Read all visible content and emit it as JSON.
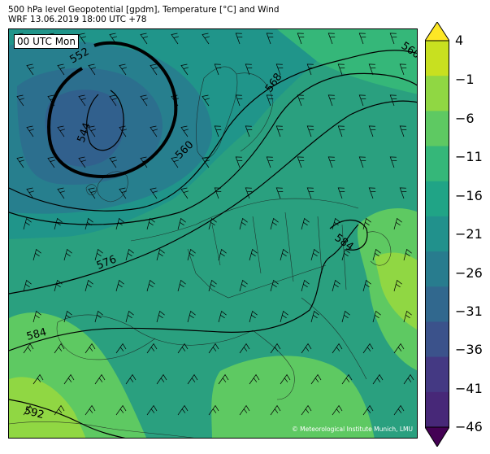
{
  "header": {
    "line1": "500 hPa level Geopotential [gpdm], Temperature [°C] and Wind",
    "line2": "WRF 13.06.2019 18:00 UTC +78"
  },
  "map": {
    "run_label": "00 UTC Mon",
    "copyright": "© Meteorological Institute Munich, LMU",
    "contour_labels": [
      "552",
      "544",
      "560",
      "568",
      "576",
      "584",
      "584",
      "592",
      "560"
    ]
  },
  "colorbar": {
    "ticks": [
      "4",
      "−1",
      "−6",
      "−11",
      "−16",
      "−21",
      "−26",
      "−31",
      "−36",
      "−41",
      "−46"
    ],
    "colors": [
      "#fde725",
      "#c8e020",
      "#90d743",
      "#5ec962",
      "#35b779",
      "#20a486",
      "#21918c",
      "#287c8e",
      "#31688e",
      "#3b528b",
      "#443983",
      "#472878",
      "#440154"
    ]
  },
  "icons": {
    "wind": "wind-barb-icon",
    "extend": "colorbar-extend-triangle"
  }
}
